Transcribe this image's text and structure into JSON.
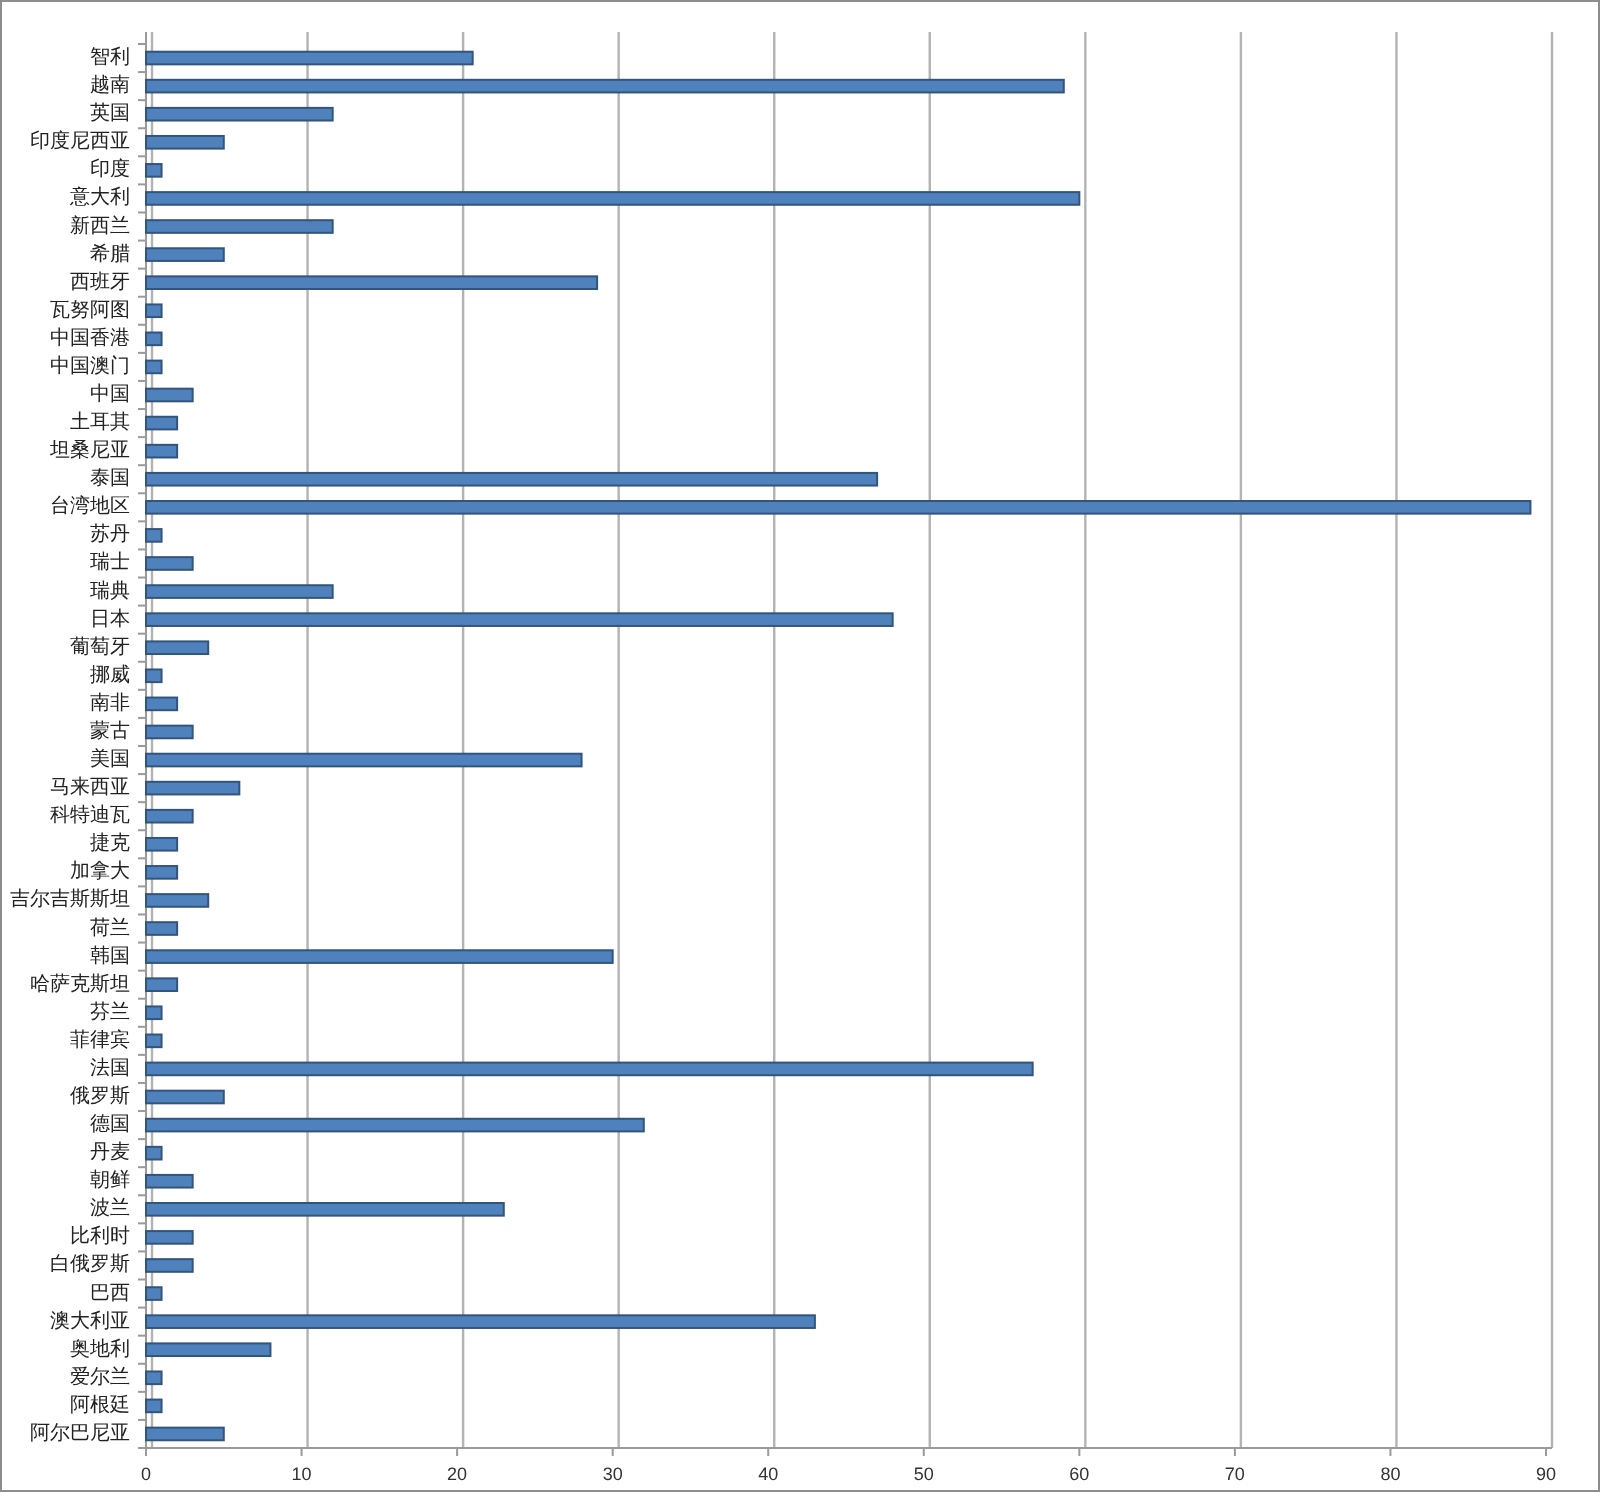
{
  "chart_data": {
    "type": "bar",
    "orientation": "horizontal",
    "categories": [
      "智利",
      "越南",
      "英国",
      "印度尼西亚",
      "印度",
      "意大利",
      "新西兰",
      "希腊",
      "西班牙",
      "瓦努阿图",
      "中国香港",
      "中国澳门",
      "中国",
      "土耳其",
      "坦桑尼亚",
      "泰国",
      "台湾地区",
      "苏丹",
      "瑞士",
      "瑞典",
      "日本",
      "葡萄牙",
      "挪威",
      "南非",
      "蒙古",
      "美国",
      "马来西亚",
      "科特迪瓦",
      "捷克",
      "加拿大",
      "吉尔吉斯斯坦",
      "荷兰",
      "韩国",
      "哈萨克斯坦",
      "芬兰",
      "菲律宾",
      "法国",
      "俄罗斯",
      "德国",
      "丹麦",
      "朝鲜",
      "波兰",
      "比利时",
      "白俄罗斯",
      "巴西",
      "澳大利亚",
      "奥地利",
      "爱尔兰",
      "阿根廷",
      "阿尔巴尼亚"
    ],
    "values": [
      21,
      59,
      12,
      5,
      1,
      60,
      12,
      5,
      29,
      1,
      1,
      1,
      3,
      2,
      2,
      47,
      89,
      1,
      3,
      12,
      48,
      4,
      1,
      2,
      3,
      28,
      6,
      3,
      2,
      2,
      4,
      2,
      30,
      2,
      1,
      1,
      57,
      5,
      32,
      1,
      3,
      23,
      3,
      3,
      1,
      43,
      8,
      1,
      1,
      5
    ],
    "color": "#4f81bd",
    "xlim": [
      0,
      90
    ],
    "xticks": [
      0,
      10,
      20,
      30,
      40,
      50,
      60,
      70,
      80,
      90
    ],
    "grid": "x"
  }
}
